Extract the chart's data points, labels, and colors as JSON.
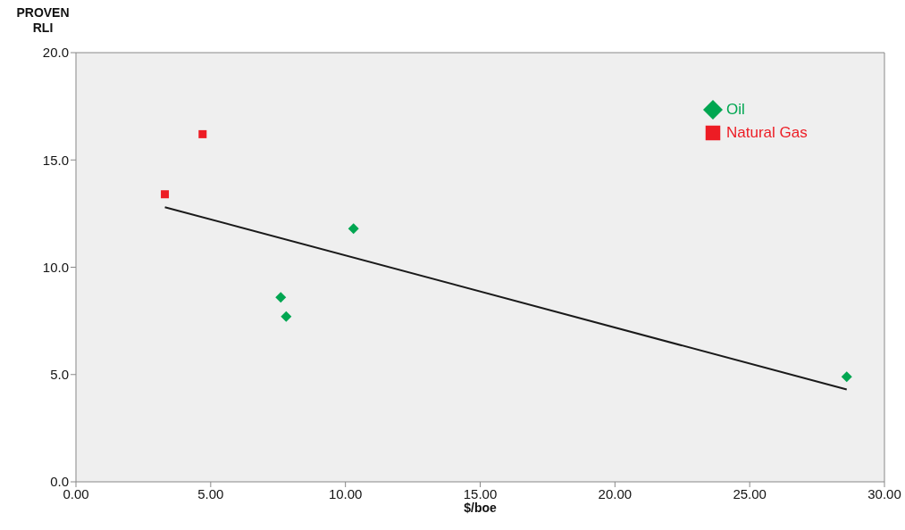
{
  "chart_data": {
    "type": "scatter",
    "ylabel": "PROVEN\nRLI",
    "xlabel": "$/boe",
    "xlim": [
      0,
      30
    ],
    "xticks": [
      {
        "value": 0,
        "label": "0.00"
      },
      {
        "value": 5,
        "label": "5.00"
      },
      {
        "value": 10,
        "label": "10.00"
      },
      {
        "value": 15,
        "label": "15.00"
      },
      {
        "value": 20,
        "label": "20.00"
      },
      {
        "value": 25,
        "label": "25.00"
      },
      {
        "value": 30,
        "label": "30.00"
      }
    ],
    "ylim": [
      0,
      20
    ],
    "yticks": [
      {
        "value": 0,
        "label": "0.0"
      },
      {
        "value": 5,
        "label": "5.0"
      },
      {
        "value": 10,
        "label": "10.0"
      },
      {
        "value": 15,
        "label": "15.0"
      },
      {
        "value": 20,
        "label": "20.0"
      }
    ],
    "grid": false,
    "legend": "top right",
    "series": [
      {
        "name": "Oil",
        "marker": "diamond",
        "color": "#00a651",
        "x": [
          10.3,
          7.6,
          7.8,
          28.6
        ],
        "values": [
          11.8,
          8.6,
          7.7,
          4.9
        ]
      },
      {
        "name": "Natural Gas",
        "marker": "square",
        "color": "#ed1c24",
        "x": [
          3.3,
          4.7
        ],
        "values": [
          13.4,
          16.2
        ]
      },
      {
        "type": "line",
        "marker": "none",
        "color": "#1a1a1a",
        "x": [
          3.3,
          28.6
        ],
        "values": [
          12.8,
          4.3
        ]
      }
    ]
  }
}
